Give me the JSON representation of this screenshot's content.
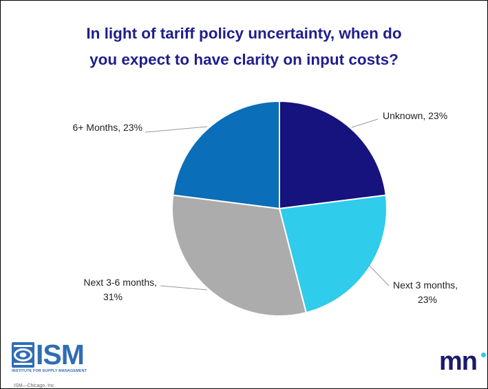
{
  "colors": {
    "title": "#1F1E8C",
    "ism_blue": "#2F6DB5",
    "mni_navy": "#1A1A6E",
    "mni_dot": "#2FC8E9"
  },
  "chart_data": {
    "type": "pie",
    "title_lines": [
      "In light of tariff policy uncertainty, when do",
      "you expect to have clarity on input costs?"
    ],
    "slices": [
      {
        "name": "Unknown",
        "value": 23,
        "label_lines": [
          "Unknown, 23%"
        ],
        "color": "#16127E"
      },
      {
        "name": "Next 3 months",
        "value": 23,
        "label_lines": [
          "Next 3 months,",
          "23%"
        ],
        "color": "#2FCCEB"
      },
      {
        "name": "Next 3-6 months",
        "value": 31,
        "label_lines": [
          "Next 3-6 months,",
          "31%"
        ],
        "color": "#ACACAC"
      },
      {
        "name": "6+ Months",
        "value": 23,
        "label_lines": [
          "6+ Months, 23%"
        ],
        "color": "#0B6EB8"
      }
    ],
    "start_angle_deg": 0,
    "direction": "clockwise",
    "legend": "none"
  },
  "logos": {
    "ism": {
      "word": "ISM",
      "tagline": "INSTITUTE FOR SUPPLY MANAGEMENT",
      "chapter": "ISM—Chicago, Inc.",
      "icon": "ism-emblem-icon"
    },
    "mni": {
      "word": "mn",
      "icon": "mni-logo-icon"
    }
  }
}
